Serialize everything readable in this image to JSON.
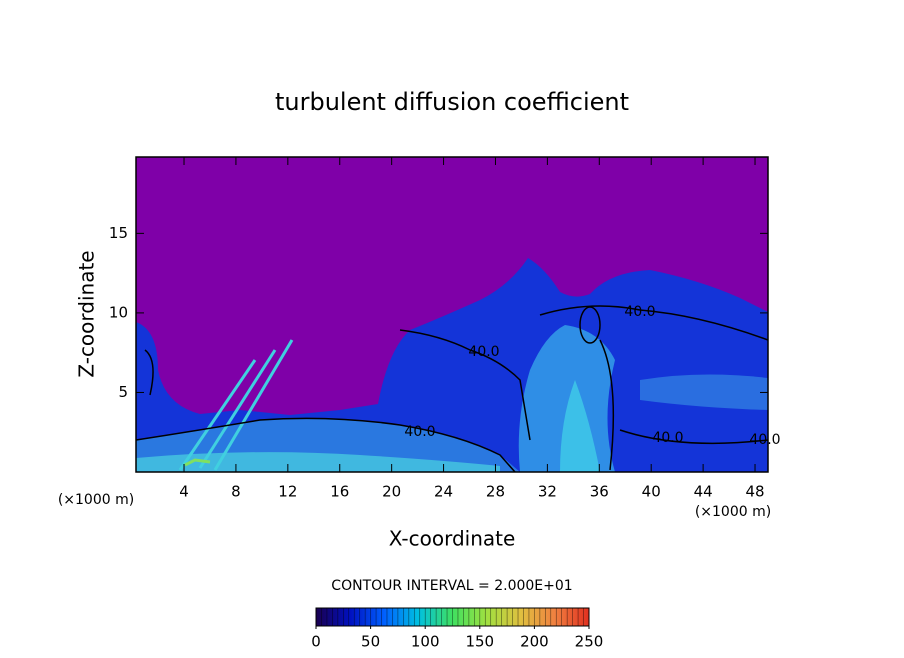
{
  "chart_data": {
    "type": "contour",
    "title": "turbulent diffusion coefficient",
    "x_label": "X-coordinate",
    "y_label": "Z-coordinate",
    "x_unit_label": "(×1000 m)",
    "xlim": [
      0.3,
      49
    ],
    "xticks": [
      4,
      8,
      12,
      16,
      20,
      24,
      28,
      32,
      36,
      40,
      44,
      48
    ],
    "ylim": [
      0,
      19.8
    ],
    "yticks": [
      5,
      10,
      15
    ],
    "background_color": "#7f00a8",
    "contour_labels": [
      "40.0",
      "40.0",
      "40.0",
      "40.0",
      "40.0"
    ],
    "contour_interval_label": "CONTOUR INTERVAL = 2.000E+01",
    "colorbar": {
      "lim": [
        0,
        250
      ],
      "ticks": [
        0,
        50,
        100,
        150,
        200,
        250
      ],
      "colors": [
        "#1a0050",
        "#0010c0",
        "#0060ff",
        "#00c0e0",
        "#40e060",
        "#a0e040",
        "#e0c040",
        "#f08040",
        "#e03020"
      ]
    }
  }
}
